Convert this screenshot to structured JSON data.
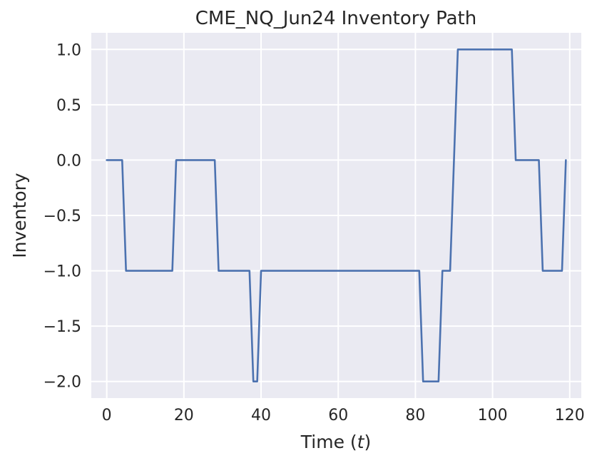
{
  "chart_data": {
    "type": "line",
    "title": "CME_NQ_Jun24 Inventory Path",
    "xlabel_prefix": "Time (",
    "xlabel_var": "t",
    "xlabel_suffix": ")",
    "ylabel": "Inventory",
    "xlim": [
      -4,
      123
    ],
    "ylim": [
      -2.15,
      1.15
    ],
    "xticks": [
      0,
      20,
      40,
      60,
      80,
      100,
      120
    ],
    "xtick_labels": [
      "0",
      "20",
      "40",
      "60",
      "80",
      "100",
      "120"
    ],
    "yticks": [
      1.0,
      0.5,
      0.0,
      -0.5,
      -1.0,
      -1.5,
      -2.0
    ],
    "ytick_labels": [
      "1.0",
      "0.5",
      "0.0",
      "−0.5",
      "−1.0",
      "−1.5",
      "−2.0"
    ],
    "grid": true,
    "background_color": "#eaeaf2",
    "line_color": "#4c72b0",
    "series": [
      {
        "x": [
          0,
          1,
          2,
          3,
          4,
          5,
          6,
          7,
          8,
          9,
          10,
          11,
          12,
          13,
          14,
          15,
          16,
          17,
          18,
          19,
          20,
          21,
          22,
          23,
          24,
          25,
          26,
          27,
          28,
          29,
          30,
          31,
          32,
          33,
          34,
          35,
          36,
          37,
          38,
          39,
          40,
          41,
          42,
          43,
          44,
          45,
          46,
          47,
          48,
          49,
          50,
          51,
          52,
          53,
          54,
          55,
          56,
          57,
          58,
          59,
          60,
          61,
          62,
          63,
          64,
          65,
          66,
          67,
          68,
          69,
          70,
          71,
          72,
          73,
          74,
          75,
          76,
          77,
          78,
          79,
          80,
          81,
          82,
          83,
          84,
          85,
          86,
          87,
          88,
          89,
          90,
          91,
          92,
          93,
          94,
          95,
          96,
          97,
          98,
          99,
          100,
          101,
          102,
          103,
          104,
          105,
          106,
          107,
          108,
          109,
          110,
          111,
          112,
          113,
          114,
          115,
          116,
          117,
          118,
          119
        ],
        "y": [
          0,
          0,
          0,
          0,
          0,
          -1,
          -1,
          -1,
          -1,
          -1,
          -1,
          -1,
          -1,
          -1,
          -1,
          -1,
          -1,
          -1,
          0,
          0,
          0,
          0,
          0,
          0,
          0,
          0,
          0,
          0,
          0,
          -1,
          -1,
          -1,
          -1,
          -1,
          -1,
          -1,
          -1,
          -1,
          -2,
          -2,
          -1,
          -1,
          -1,
          -1,
          -1,
          -1,
          -1,
          -1,
          -1,
          -1,
          -1,
          -1,
          -1,
          -1,
          -1,
          -1,
          -1,
          -1,
          -1,
          -1,
          -1,
          -1,
          -1,
          -1,
          -1,
          -1,
          -1,
          -1,
          -1,
          -1,
          -1,
          -1,
          -1,
          -1,
          -1,
          -1,
          -1,
          -1,
          -1,
          -1,
          -1,
          -1,
          -2,
          -2,
          -2,
          -2,
          -2,
          -1,
          -1,
          -1,
          0,
          1,
          1,
          1,
          1,
          1,
          1,
          1,
          1,
          1,
          1,
          1,
          1,
          1,
          1,
          1,
          0,
          0,
          0,
          0,
          0,
          0,
          0,
          -1,
          -1,
          -1,
          -1,
          -1,
          -1,
          0
        ]
      }
    ]
  }
}
